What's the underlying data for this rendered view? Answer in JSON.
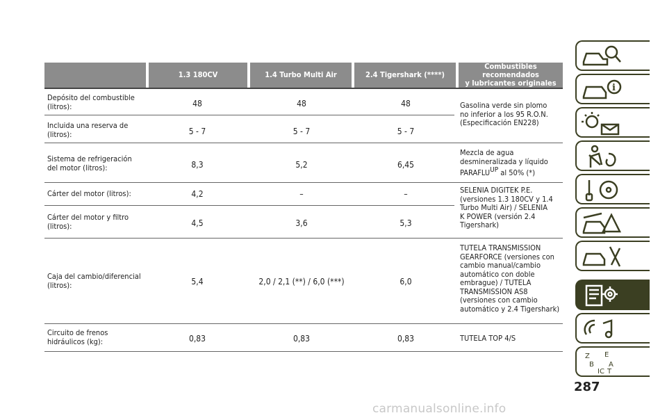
{
  "table": {
    "headers": [
      "",
      "1.3 180CV",
      "1.4 Turbo Multi Air",
      "2.4 Tigershark (****)",
      "Combustibles recomendados\ny lubricantes originales"
    ],
    "rows": [
      {
        "label": "Depósito del combustible\n(litros):",
        "values": [
          "48",
          "48",
          "48"
        ]
      },
      {
        "label": "Incluida una reserva de\n(litros):",
        "values": [
          "5 - 7",
          "5 - 7",
          "5 - 7"
        ]
      },
      {
        "label": "Sistema de refrigeración\ndel motor (litros):",
        "values": [
          "8,3",
          "5,2",
          "6,45"
        ]
      },
      {
        "label": "Cárter del motor (litros):",
        "values": [
          "4,2",
          "–",
          "–"
        ]
      },
      {
        "label": "Cárter del motor y filtro\n(litros):",
        "values": [
          "4,5",
          "3,6",
          "5,3"
        ]
      },
      {
        "label": "Caja del cambio/diferencial\n(litros):",
        "values": [
          "5,4",
          "2,0 / 2,1 (**) / 6,0 (***)",
          "6,0"
        ]
      },
      {
        "label": "Circuito de frenos\nhidráulicos (kg):",
        "values": [
          "0,83",
          "0,83",
          "0,83"
        ]
      }
    ],
    "recommendations": {
      "fuel": "Gasolina verde sin plomo\nno inferior a los 95 R.O.N.\n(Especificación EN228)",
      "coolant_pre": "Mezcla de agua\ndesmineralizada y líquido\nPARAFLU",
      "coolant_sup": "UP",
      "coolant_post": " al 50% (*)",
      "oil": "SELENIA DIGITEK P.E.\n(versiones 1.3 180CV y 1.4\nTurbo Multi Air) / SELENIA\nK POWER (versión 2.4\nTigershark)",
      "gearbox": "TUTELA TRANSMISSION\nGEARFORCE (versiones con\ncambio manual/cambio\nautomático con doble\nembrague) / TUTELA\nTRANSMISSION AS8\n(versiones con cambio\nautomático y 2.4 Tigershark)",
      "brakes": "TUTELA TOP 4/S"
    }
  },
  "side_tabs": [
    "car-search-icon",
    "car-info-icon",
    "warning-lights-icon",
    "seatbelt-airbag-icon",
    "key-steering-icon",
    "breakdown-icon",
    "service-icon",
    "specs-gear-icon",
    "multimedia-icon",
    "index-icon"
  ],
  "page_number": "287",
  "watermark": "carmanualsonline.info",
  "colors": {
    "header_bg": "#8c8c8c",
    "tab_dark": "#3b3f22"
  }
}
